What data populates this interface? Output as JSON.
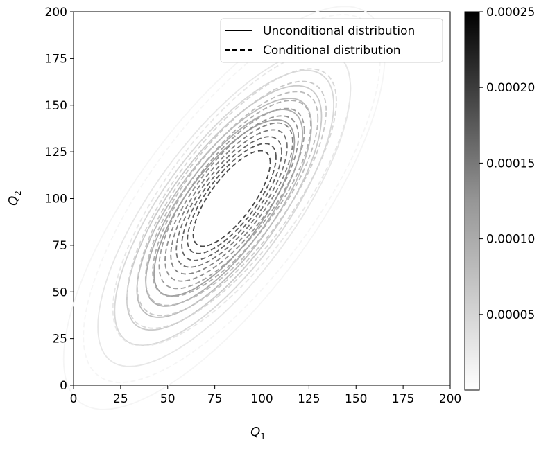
{
  "chart_data": {
    "type": "contour",
    "xlabel": "Q",
    "xlabel_sub": "1",
    "ylabel": "Q",
    "ylabel_sub": "2",
    "xlim": [
      0,
      200
    ],
    "ylim": [
      0,
      200
    ],
    "xticks": [
      "0",
      "25",
      "50",
      "75",
      "100",
      "125",
      "150",
      "175",
      "200"
    ],
    "yticks": [
      "0",
      "25",
      "50",
      "75",
      "100",
      "125",
      "150",
      "175",
      "200"
    ],
    "grid": false,
    "legend_position": "top-right",
    "legend": [
      {
        "label": "Unconditional distribution",
        "style": "solid"
      },
      {
        "label": "Conditional distribution",
        "style": "dashed"
      }
    ],
    "colorbar": {
      "range": [
        0,
        0.00025
      ],
      "ticks": [
        5e-05,
        0.0001,
        0.00015,
        0.0002,
        0.00025
      ],
      "tick_labels": [
        "0.00005",
        "0.00010",
        "0.00015",
        "0.00020",
        "0.00025"
      ],
      "colormap": "greys"
    },
    "series": [
      {
        "name": "Unconditional distribution",
        "style": "solid",
        "center": [
          80,
          95
        ],
        "sd": [
          31.6,
          40
        ],
        "rho": 0.75,
        "levels": [
          5e-06,
          2e-05,
          3.5e-05,
          5e-05,
          6.5e-05,
          8e-05,
          9.5e-05
        ]
      },
      {
        "name": "Conditional distribution",
        "style": "dashed",
        "center": [
          84,
          100
        ],
        "sd": [
          28.3,
          35.4
        ],
        "rho": 0.75,
        "levels": [
          5e-06,
          2e-05,
          3.5e-05,
          5e-05,
          6.5e-05,
          8e-05,
          9.5e-05,
          0.00011,
          0.000125,
          0.00014,
          0.000155,
          0.00017,
          0.000185
        ]
      }
    ]
  }
}
